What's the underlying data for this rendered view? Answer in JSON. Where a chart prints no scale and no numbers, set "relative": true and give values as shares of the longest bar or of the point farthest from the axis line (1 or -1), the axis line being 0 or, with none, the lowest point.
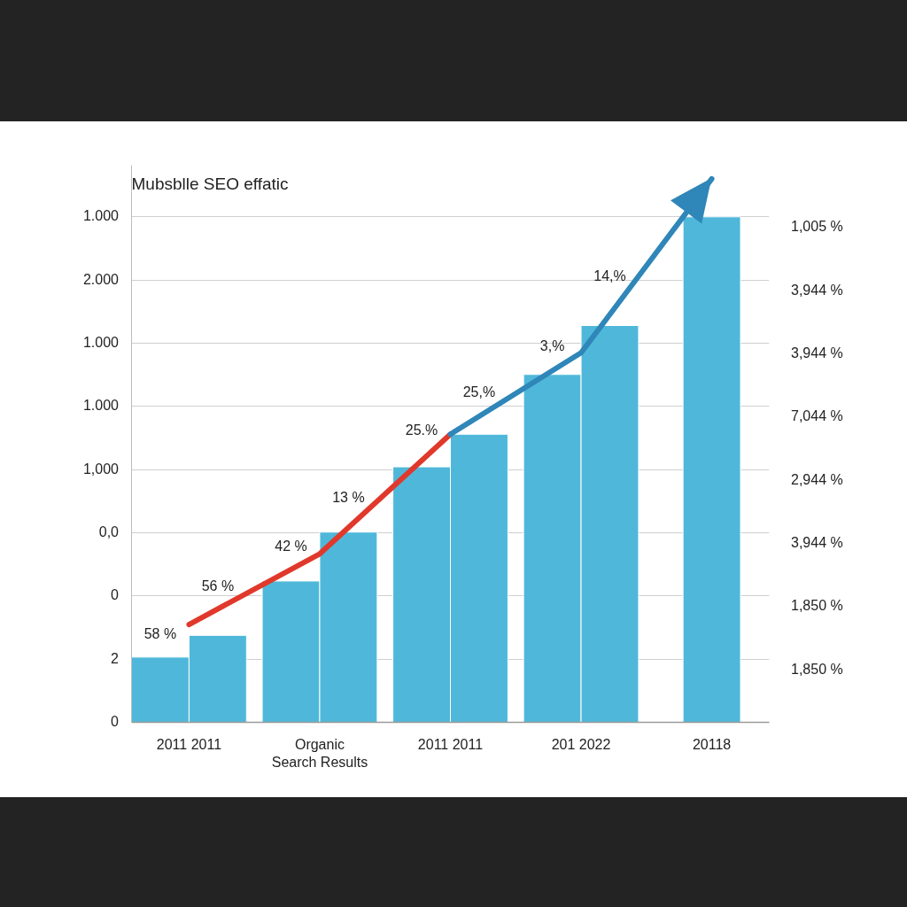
{
  "chart_data": {
    "type": "bar",
    "title": "Mubsblle SEO effatic",
    "relative": true,
    "categories": [
      "2011 2011",
      "Organic\nSearch Results",
      "2011 2011",
      "201 2022",
      "20118"
    ],
    "series": [
      {
        "color": "#4fb8da",
        "values": [
          0.12,
          0.26,
          0.47,
          0.64,
          0.93
        ]
      },
      {
        "color": "#4fb8da",
        "values": [
          0.16,
          0.35,
          0.53,
          0.73,
          null
        ]
      },
      {
        "type": "line",
        "color": "#e0392b",
        "values": [
          0.18,
          0.31,
          0.53,
          null,
          null
        ]
      },
      {
        "type": "line",
        "color": "#2f86b8",
        "values": [
          null,
          null,
          0.53,
          0.68,
          1.0
        ]
      }
    ],
    "annotations": [
      "1.000",
      "2.000",
      "1.000",
      "1.000",
      "1,000",
      "0,0",
      "0",
      "2",
      "0",
      "1,005 %",
      "3,944 %",
      "3,944 %",
      "7,044 %",
      "2,944 %",
      "3,944 %",
      "1,850 %",
      "1,850 %",
      "58 %",
      "56 %",
      "42 %",
      "13 %",
      "25.%",
      "25,%",
      "3,%",
      "14,%"
    ],
    "grid": "y",
    "marker": "none",
    "line_style": "solid"
  }
}
